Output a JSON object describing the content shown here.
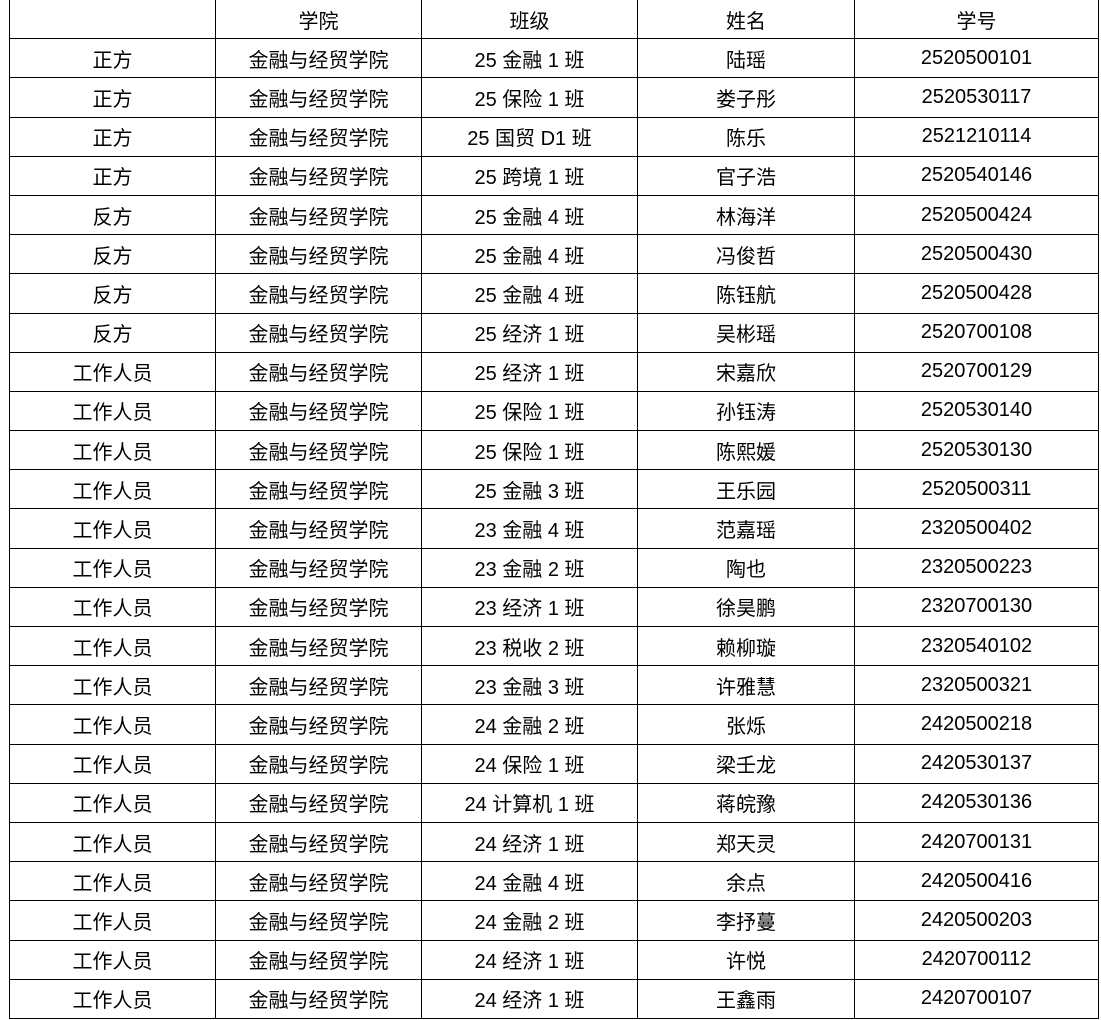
{
  "table": {
    "headers": [
      "",
      "学院",
      "班级",
      "姓名",
      "学号"
    ],
    "rows": [
      [
        "正方",
        "金融与经贸学院",
        "25 金融 1 班",
        "陆瑶",
        "2520500101"
      ],
      [
        "正方",
        "金融与经贸学院",
        "25 保险 1 班",
        "娄子彤",
        "2520530117"
      ],
      [
        "正方",
        "金融与经贸学院",
        "25 国贸 D1 班",
        "陈乐",
        "2521210114"
      ],
      [
        "正方",
        "金融与经贸学院",
        "25 跨境 1 班",
        "官子浩",
        "2520540146"
      ],
      [
        "反方",
        "金融与经贸学院",
        "25 金融 4 班",
        "林海洋",
        "2520500424"
      ],
      [
        "反方",
        "金融与经贸学院",
        "25 金融 4 班",
        "冯俊哲",
        "2520500430"
      ],
      [
        "反方",
        "金融与经贸学院",
        "25 金融 4 班",
        "陈钰航",
        "2520500428"
      ],
      [
        "反方",
        "金融与经贸学院",
        "25 经济 1 班",
        "吴彬瑶",
        "2520700108"
      ],
      [
        "工作人员",
        "金融与经贸学院",
        "25 经济 1 班",
        "宋嘉欣",
        "2520700129"
      ],
      [
        "工作人员",
        "金融与经贸学院",
        "25 保险 1 班",
        "孙钰涛",
        "2520530140"
      ],
      [
        "工作人员",
        "金融与经贸学院",
        "25 保险 1 班",
        "陈熙媛",
        "2520530130"
      ],
      [
        "工作人员",
        "金融与经贸学院",
        "25 金融 3 班",
        "王乐园",
        "2520500311"
      ],
      [
        "工作人员",
        "金融与经贸学院",
        "23 金融 4 班",
        "范嘉瑶",
        "2320500402"
      ],
      [
        "工作人员",
        "金融与经贸学院",
        "23 金融 2 班",
        "陶也",
        "2320500223"
      ],
      [
        "工作人员",
        "金融与经贸学院",
        "23 经济 1 班",
        "徐昊鹏",
        "2320700130"
      ],
      [
        "工作人员",
        "金融与经贸学院",
        "23 税收 2 班",
        "赖柳璇",
        "2320540102"
      ],
      [
        "工作人员",
        "金融与经贸学院",
        "23 金融 3 班",
        "许雅慧",
        "2320500321"
      ],
      [
        "工作人员",
        "金融与经贸学院",
        "24 金融 2 班",
        "张烁",
        "2420500218"
      ],
      [
        "工作人员",
        "金融与经贸学院",
        "24 保险 1 班",
        "梁壬龙",
        "2420530137"
      ],
      [
        "工作人员",
        "金融与经贸学院",
        "24 计算机 1 班",
        "蒋皖豫",
        "2420530136"
      ],
      [
        "工作人员",
        "金融与经贸学院",
        "24 经济 1 班",
        "郑天灵",
        "2420700131"
      ],
      [
        "工作人员",
        "金融与经贸学院",
        "24 金融 4 班",
        "余点",
        "2420500416"
      ],
      [
        "工作人员",
        "金融与经贸学院",
        "24 金融 2 班",
        "李抒蔓",
        "2420500203"
      ],
      [
        "工作人员",
        "金融与经贸学院",
        "24 经济 1 班",
        "许悦",
        "2420700112"
      ],
      [
        "工作人员",
        "金融与经贸学院",
        "24 经济 1 班",
        "王鑫雨",
        "2420700107"
      ]
    ]
  }
}
